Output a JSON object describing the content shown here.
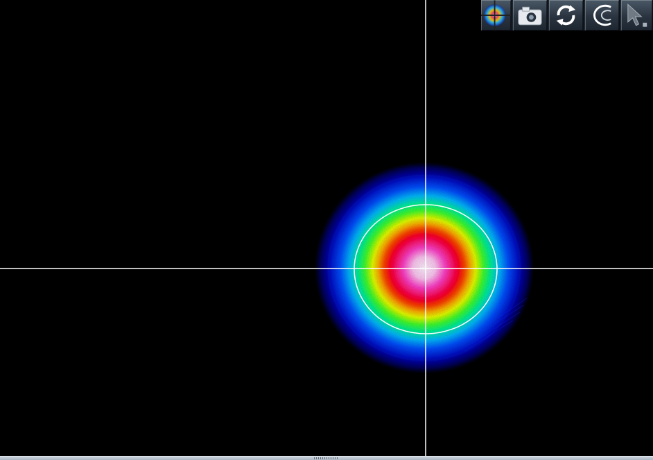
{
  "window": {
    "title": ""
  },
  "toolbar": {
    "buttons": [
      {
        "name": "beam-profile-view-button",
        "icon": "beam-profile-icon"
      },
      {
        "name": "snapshot-button",
        "icon": "camera-icon"
      },
      {
        "name": "refresh-button",
        "icon": "refresh-icon"
      },
      {
        "name": "ellipse-tool-button",
        "icon": "ellipse-icon"
      },
      {
        "name": "pointer-tool-button",
        "icon": "pointer-icon"
      }
    ]
  },
  "display": {
    "background_color": "#000000",
    "crosshair_color": "#ffffff",
    "ellipse_color": "#ffffff",
    "colormap": [
      "#000014",
      "#0a1aff",
      "#00a8ff",
      "#00e0c0",
      "#30ff40",
      "#ffff00",
      "#ff9900",
      "#ff0000",
      "#ff0066",
      "#ff3ddc",
      "#ffe0ff"
    ]
  }
}
